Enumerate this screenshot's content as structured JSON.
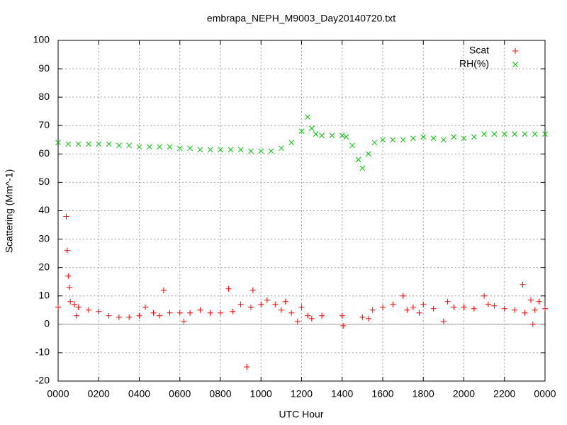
{
  "chart_data": {
    "type": "scatter",
    "title": "embrapa_NEPH_M9003_Day20140720.txt",
    "xlabel": "UTC Hour",
    "ylabel": "Scattering (Mm^-1)",
    "xlim": [
      0,
      24
    ],
    "xticks": [
      {
        "value": 0,
        "label": "0000"
      },
      {
        "value": 2,
        "label": "0200"
      },
      {
        "value": 4,
        "label": "0400"
      },
      {
        "value": 6,
        "label": "0600"
      },
      {
        "value": 8,
        "label": "0800"
      },
      {
        "value": 10,
        "label": "1000"
      },
      {
        "value": 12,
        "label": "1200"
      },
      {
        "value": 14,
        "label": "1400"
      },
      {
        "value": 16,
        "label": "1600"
      },
      {
        "value": 18,
        "label": "1800"
      },
      {
        "value": 20,
        "label": "2000"
      },
      {
        "value": 22,
        "label": "2200"
      },
      {
        "value": 24,
        "label": "0000"
      }
    ],
    "ylim": [
      -20,
      100
    ],
    "yticks": [
      -20,
      -10,
      0,
      10,
      20,
      30,
      40,
      50,
      60,
      70,
      80,
      90,
      100
    ],
    "grid": true,
    "legend": "top-right",
    "series": [
      {
        "name": "Scat",
        "color": "#ff0000",
        "marker": "plus",
        "x": [
          0,
          0.4,
          0.45,
          0.5,
          0.55,
          0.6,
          0.8,
          0.9,
          1,
          1.5,
          2,
          2.5,
          3,
          3.5,
          4,
          4.3,
          4.7,
          5,
          5.2,
          5.5,
          6,
          6.2,
          6.5,
          7,
          7.5,
          8,
          8.4,
          8.6,
          9,
          9.3,
          9.5,
          9.6,
          10,
          10.3,
          10.7,
          11,
          11.2,
          11.5,
          11.8,
          12,
          12.3,
          12.5,
          13,
          14,
          14.05,
          15,
          15.3,
          15.5,
          16,
          16.5,
          17,
          17.2,
          17.5,
          17.8,
          18,
          18.5,
          19,
          19.2,
          19.5,
          20,
          20.5,
          21,
          21.2,
          21.5,
          22,
          22.5,
          22.9,
          23,
          23.3,
          23.4,
          23.5,
          23.7,
          24
        ],
        "values": [
          6,
          38,
          26,
          17,
          13,
          8,
          7,
          3,
          6,
          5,
          4.5,
          3,
          2.5,
          2.5,
          3,
          6,
          4,
          3,
          12,
          4,
          4,
          1,
          4,
          5,
          4,
          4,
          12.5,
          4.5,
          7,
          -15,
          6,
          12,
          7,
          8.5,
          7,
          5,
          8,
          4,
          1,
          6,
          3,
          2,
          3,
          3,
          -0.5,
          2.5,
          2,
          5,
          6,
          7,
          10,
          5,
          6,
          4,
          7,
          5.5,
          1,
          8,
          6,
          6,
          5.5,
          10,
          7,
          6.5,
          5.5,
          5,
          14,
          4,
          8.5,
          0,
          5,
          8,
          5.5
        ]
      },
      {
        "name": "RH(%)",
        "color": "#00c000",
        "marker": "cross",
        "x": [
          0,
          0.5,
          1,
          1.5,
          2,
          2.5,
          3,
          3.5,
          4,
          4.5,
          5,
          5.5,
          6,
          6.5,
          7,
          7.5,
          8,
          8.5,
          9,
          9.5,
          10,
          10.5,
          11,
          11.5,
          12,
          12.3,
          12.5,
          12.7,
          13,
          13.5,
          14,
          14.2,
          14.5,
          14.8,
          15,
          15.3,
          15.6,
          16,
          16.5,
          17,
          17.5,
          18,
          18.5,
          19,
          19.5,
          20,
          20.5,
          21,
          21.5,
          22,
          22.5,
          23,
          23.5,
          24
        ],
        "values": [
          64,
          63.5,
          63.5,
          63.5,
          63.5,
          63.5,
          63,
          63,
          62.5,
          62.5,
          62.5,
          62.5,
          62,
          62,
          61.5,
          61.5,
          61.5,
          61.5,
          61.5,
          61,
          61,
          61,
          62,
          64,
          68,
          73,
          69,
          67,
          66.5,
          66.5,
          66.5,
          66,
          63,
          58,
          55,
          60,
          64,
          65,
          65,
          65,
          65.5,
          66,
          65.5,
          65,
          66,
          65.5,
          66,
          67,
          67,
          67,
          67,
          67,
          67,
          67
        ]
      }
    ]
  }
}
